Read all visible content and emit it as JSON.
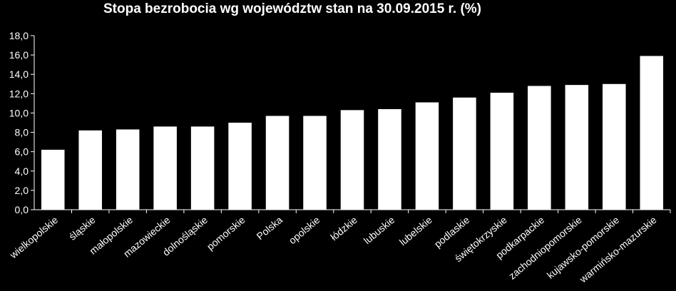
{
  "chart_data": {
    "type": "bar",
    "title": "Stopa bezrobocia wg województw stan na 30.09.2015 r. (%)",
    "xlabel": "",
    "ylabel": "",
    "ylim": [
      0,
      18
    ],
    "yticks": [
      "0,0",
      "2,0",
      "4,0",
      "6,0",
      "8,0",
      "10,0",
      "12,0",
      "14,0",
      "16,0",
      "18,0"
    ],
    "grid": false,
    "categories": [
      "wielkopolskie",
      "śląskie",
      "małopolskie",
      "mazowieckie",
      "dolnośląskie",
      "pomorskie",
      "Polska",
      "opolskie",
      "łódzkie",
      "lubuskie",
      "lubelskie",
      "podlaskie",
      "świętokrzyskie",
      "podkarpackie",
      "zachodniopomorskie",
      "kujawsko-pomorskie",
      "warmińsko-mazurskie"
    ],
    "values": [
      6.2,
      8.2,
      8.3,
      8.6,
      8.6,
      9.0,
      9.7,
      9.7,
      10.3,
      10.4,
      11.1,
      11.6,
      12.1,
      12.8,
      12.9,
      13.0,
      15.9
    ],
    "colors": {
      "background": "#000000",
      "bar": "#ffffff",
      "axis": "#ffffff",
      "text": "#ffffff"
    }
  }
}
